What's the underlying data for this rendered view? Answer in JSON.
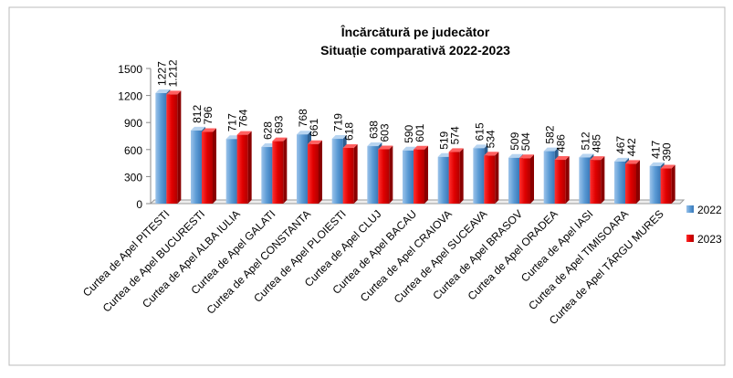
{
  "chart_data": {
    "type": "bar",
    "title": "Încărcătură pe judecător",
    "subtitle": "Situație comparativă  2022-2023",
    "categories": [
      "Curtea de Apel PITESTI",
      "Curtea de Apel BUCURESTI",
      "Curtea de Apel ALBA IULIA",
      "Curtea de Apel GALATI",
      "Curtea de Apel CONSTANTA",
      "Curtea de Apel PLOIESTI",
      "Curtea de Apel CLUJ",
      "Curtea de Apel BACAU",
      "Curtea de Apel CRAIOVA",
      "Curtea de Apel SUCEAVA",
      "Curtea de Apel BRASOV",
      "Curtea de Apel ORADEA",
      "Curtea de Apel IASI",
      "Curtea de Apel TIMISOARA",
      "Curtea de Apel TÂRGU MURES"
    ],
    "series": [
      {
        "name": "2022",
        "color": "#5b9bd5",
        "values": [
          1227,
          812,
          717,
          628,
          768,
          719,
          638,
          590,
          519,
          615,
          509,
          582,
          512,
          467,
          417
        ]
      },
      {
        "name": "2023",
        "color": "#e00000",
        "values": [
          1212,
          796,
          764,
          693,
          661,
          618,
          603,
          601,
          574,
          534,
          504,
          486,
          485,
          442,
          390
        ],
        "value_labels": [
          "1.212",
          "796",
          "764",
          "693",
          "661",
          "618",
          "603",
          "601",
          "574",
          "534",
          "504",
          "486",
          "485",
          "442",
          "390"
        ]
      }
    ],
    "ylim": [
      0,
      1500
    ],
    "yticks": [
      0,
      300,
      600,
      900,
      1200,
      1500
    ],
    "legend": "right"
  }
}
